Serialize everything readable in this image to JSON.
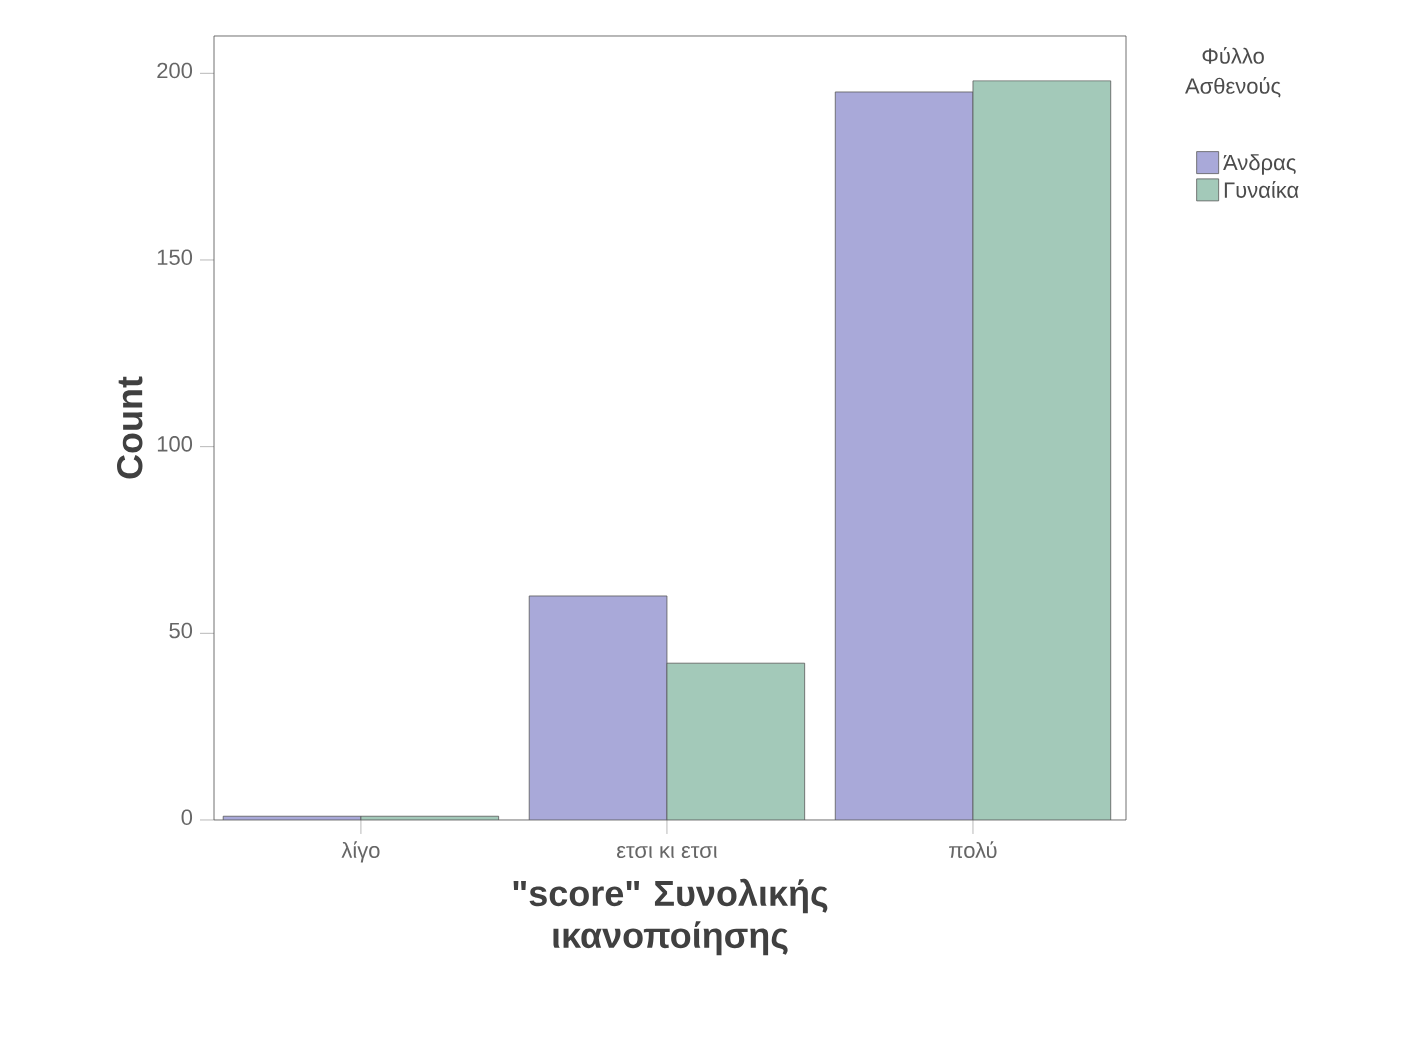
{
  "chart_data": {
    "type": "bar",
    "xlabel": "\"score\" Συνολικής ικανοποίησης",
    "ylabel": "Count",
    "legend_title": "Φύλλο Ασθενούς",
    "categories": [
      "λίγο",
      "ετσι κι ετσι",
      "πολύ"
    ],
    "series": [
      {
        "name": "Άνδρας",
        "color": "#a9a9d9",
        "values": [
          1,
          60,
          195
        ]
      },
      {
        "name": "Γυναίκα",
        "color": "#a3c9b9",
        "values": [
          1,
          42,
          198
        ]
      }
    ],
    "ylim": [
      0,
      210
    ],
    "yticks": [
      0,
      50,
      100,
      150,
      200
    ],
    "grid": false,
    "legend": "right"
  }
}
